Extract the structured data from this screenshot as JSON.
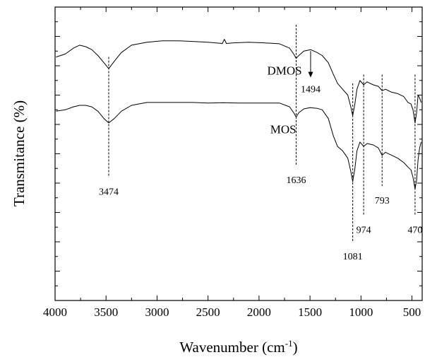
{
  "chart_data": {
    "type": "line",
    "xlabel": "Wavenumber (cm",
    "xlabel_sup": "-1",
    "xlabel_close": ")",
    "ylabel": "Transmitance (%)",
    "xlim": [
      4000,
      400
    ],
    "x_reversed": true,
    "ylim": [
      0,
      100
    ],
    "y_tick_labels_shown": false,
    "grid": false,
    "x_ticks": [
      4000,
      3500,
      3000,
      2500,
      2000,
      1500,
      1000,
      500
    ],
    "x_tick_labels": [
      "4000",
      "3500",
      "3000",
      "2500",
      "2000",
      "1500",
      "1000",
      "500"
    ],
    "series": [
      {
        "name": "DMOS",
        "x": [
          3990,
          3900,
          3820,
          3760,
          3700,
          3640,
          3580,
          3520,
          3474,
          3420,
          3350,
          3250,
          3100,
          2950,
          2800,
          2650,
          2500,
          2360,
          2340,
          2320,
          2250,
          2100,
          1950,
          1800,
          1700,
          1660,
          1636,
          1610,
          1560,
          1494,
          1430,
          1380,
          1320,
          1270,
          1230,
          1180,
          1130,
          1100,
          1081,
          1060,
          1040,
          1010,
          974,
          940,
          880,
          830,
          793,
          760,
          700,
          640,
          580,
          540,
          510,
          490,
          470,
          455,
          440,
          425,
          410
        ],
        "y": [
          83,
          84,
          86,
          87,
          86.5,
          85.5,
          83.5,
          81,
          79,
          81.5,
          84.5,
          87,
          88,
          88.5,
          88.5,
          88.3,
          88,
          87.6,
          89,
          87.6,
          87.8,
          88,
          87.8,
          87.5,
          86,
          84,
          82.5,
          83.5,
          85,
          85.5,
          84.5,
          83.5,
          81,
          77,
          74,
          72,
          70,
          66,
          63,
          67,
          72,
          75,
          73.5,
          74.5,
          73.5,
          73,
          71.5,
          72,
          71,
          70.5,
          69.5,
          67.5,
          67,
          65,
          60.5,
          64,
          70,
          69,
          67.5
        ]
      },
      {
        "name": "MOS",
        "x": [
          3990,
          3900,
          3820,
          3760,
          3700,
          3640,
          3580,
          3520,
          3474,
          3420,
          3350,
          3250,
          3100,
          2950,
          2800,
          2650,
          2500,
          2350,
          2200,
          2050,
          1900,
          1800,
          1700,
          1660,
          1636,
          1610,
          1560,
          1500,
          1430,
          1380,
          1320,
          1270,
          1230,
          1180,
          1130,
          1100,
          1081,
          1060,
          1040,
          1010,
          974,
          940,
          880,
          830,
          793,
          760,
          700,
          640,
          580,
          540,
          510,
          490,
          470,
          455,
          440,
          425,
          410
        ],
        "y": [
          64.5,
          65,
          66,
          66.5,
          66.5,
          66,
          64.5,
          62,
          60.5,
          62,
          64.5,
          66.5,
          67.5,
          67.5,
          67.5,
          67.5,
          67.3,
          67.4,
          67.3,
          67.3,
          67.3,
          67.3,
          66,
          64,
          62.5,
          64,
          65.3,
          65.7,
          65.5,
          65,
          62,
          56,
          52.5,
          51,
          48.5,
          44,
          40.5,
          45,
          51,
          54,
          52.5,
          53.5,
          53,
          52,
          49.5,
          50.5,
          49.5,
          48.5,
          47,
          45.5,
          44.5,
          42,
          38,
          41,
          48,
          52,
          54
        ]
      }
    ],
    "series_labels": [
      {
        "text": "DMOS",
        "x": 1920,
        "y": 77
      },
      {
        "text": "MOS",
        "x": 1890,
        "y": 57
      }
    ],
    "annotations": [
      {
        "label": "3474",
        "x": 3474,
        "y_from": 83,
        "y_to": 42,
        "label_y": 36
      },
      {
        "label": "1636",
        "x": 1636,
        "y_from": 94,
        "y_to": 46,
        "label_y": 40
      },
      {
        "label": "1494",
        "x": 1494,
        "arrow_from": 85,
        "arrow_to": 76,
        "label_y": 71
      },
      {
        "label": "1081",
        "x": 1081,
        "y_from": 74,
        "y_to": 20,
        "label_y": 14
      },
      {
        "label": "974",
        "x": 974,
        "y_from": 77,
        "y_to": 29,
        "label_y": 23
      },
      {
        "label": "793",
        "x": 793,
        "y_from": 77,
        "y_to": 39,
        "label_y": 33
      },
      {
        "label": "470",
        "x": 470,
        "y_from": 77,
        "y_to": 29,
        "label_y": 23
      }
    ]
  }
}
